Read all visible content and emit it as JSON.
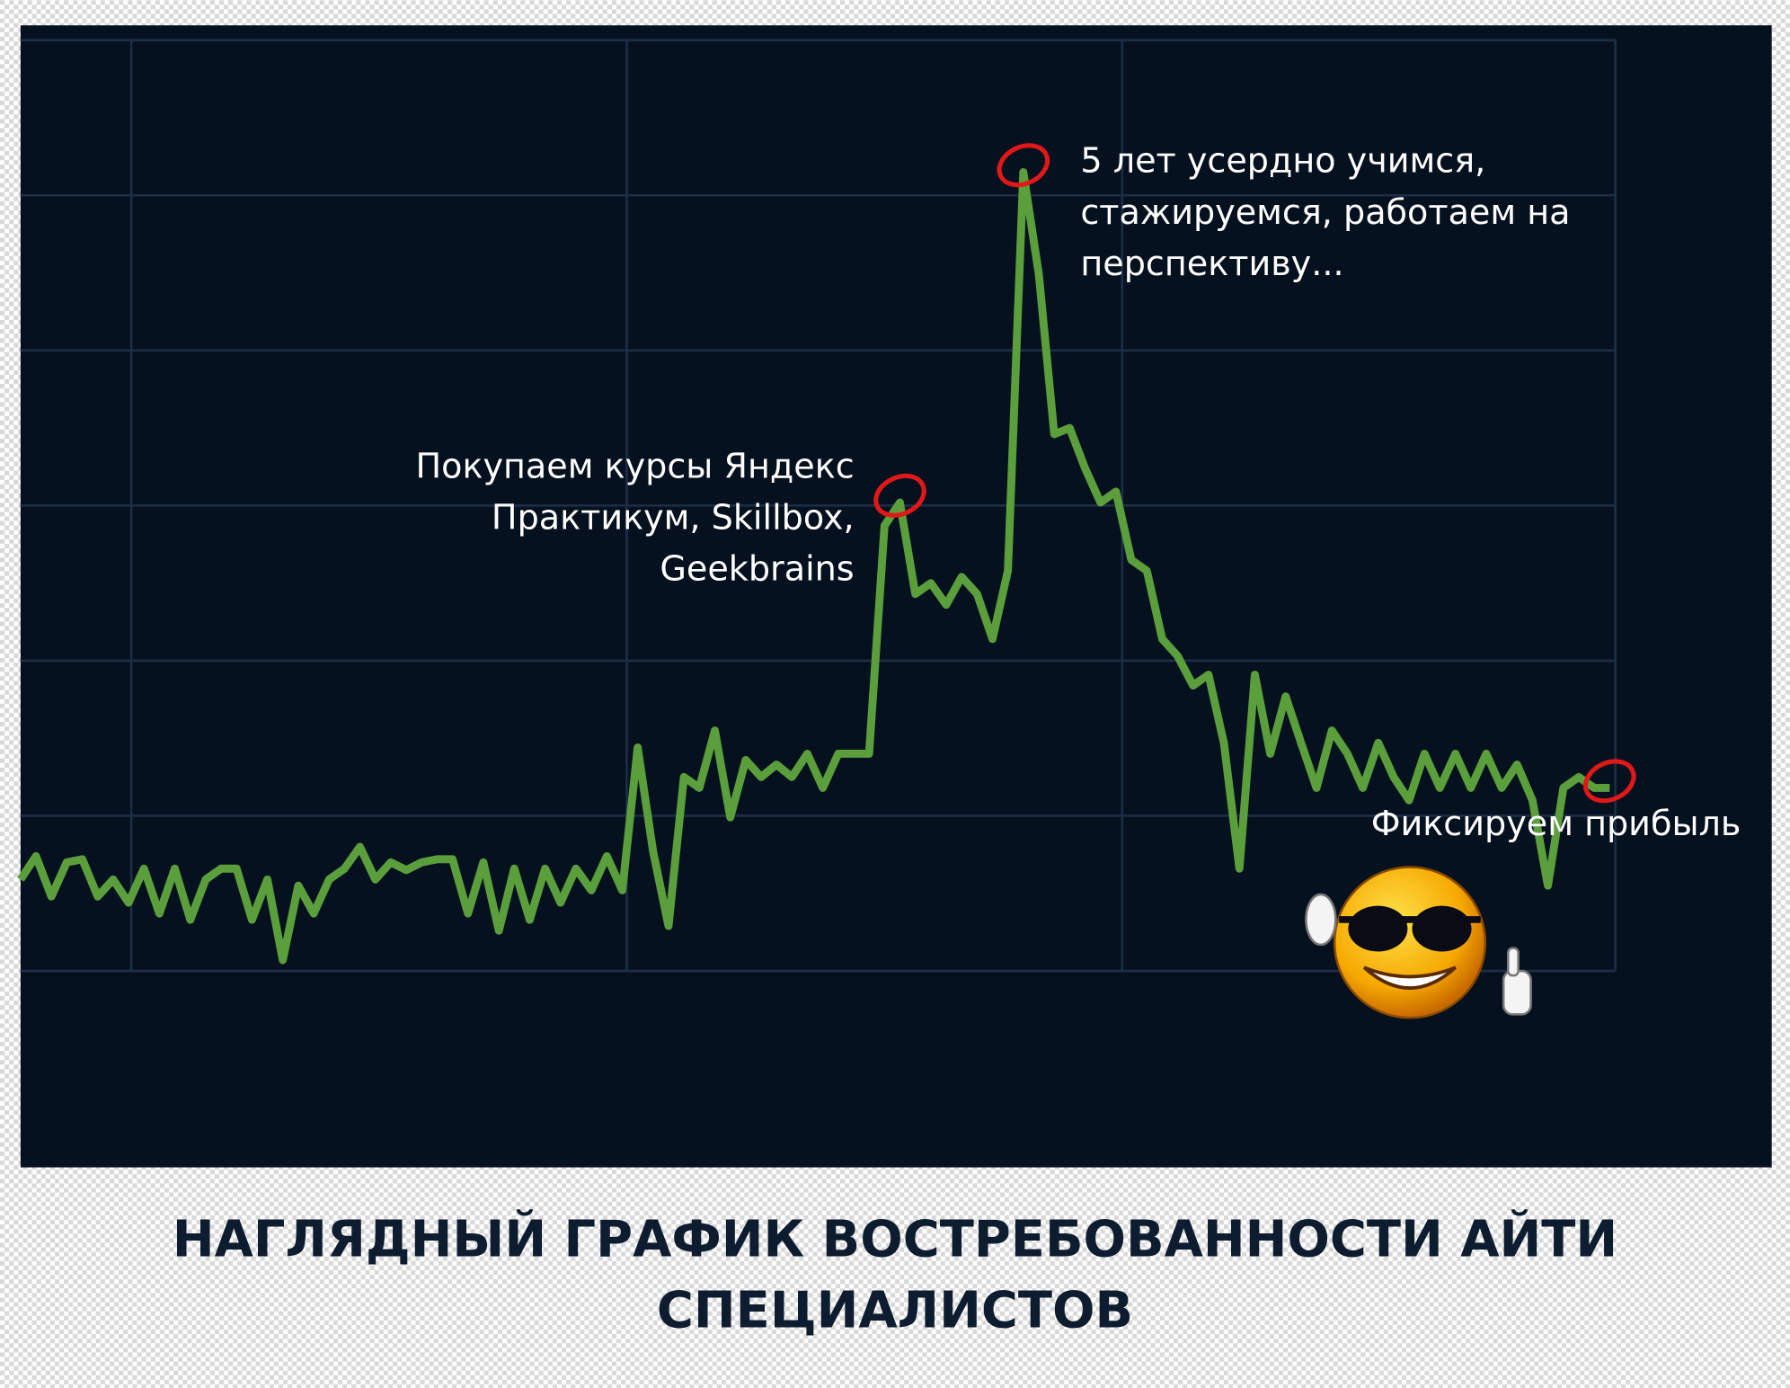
{
  "chart_data": {
    "type": "line",
    "title": [
      "НАГЛЯДНЫЙ ГРАФИК ВОСТРЕБОВАННОСТИ АЙТИ",
      "СПЕЦИАЛИСТОВ"
    ],
    "annotations": [
      [
        "Покупаем курсы Яндекс",
        "Практикум, Skillbox,",
        "Geekbrains"
      ],
      [
        "5 лет усердно учимся,",
        "стажируемся, работаем на",
        "перспективу..."
      ],
      [
        "Фиксируем прибыль"
      ]
    ],
    "values": [
      0.59,
      0.74,
      0.48,
      0.7,
      0.72,
      0.48,
      0.59,
      0.44,
      0.66,
      0.37,
      0.66,
      0.33,
      0.59,
      0.66,
      0.66,
      0.33,
      0.59,
      0.07,
      0.55,
      0.37,
      0.59,
      0.66,
      0.8,
      0.59,
      0.7,
      0.65,
      0.7,
      0.72,
      0.72,
      0.37,
      0.7,
      0.26,
      0.66,
      0.33,
      0.66,
      0.44,
      0.66,
      0.52,
      0.74,
      0.52,
      1.44,
      0.77,
      0.29,
      1.25,
      1.18,
      1.55,
      0.99,
      1.36,
      1.25,
      1.33,
      1.25,
      1.4,
      1.18,
      1.4,
      1.4,
      1.4,
      2.87,
      3.02,
      2.43,
      2.5,
      2.36,
      2.54,
      2.43,
      2.14,
      2.58,
      5.15,
      4.49,
      3.46,
      3.5,
      3.24,
      3.02,
      3.09,
      2.65,
      2.58,
      2.14,
      2.03,
      1.84,
      1.91,
      1.47,
      0.66,
      1.91,
      1.4,
      1.77,
      1.47,
      1.18,
      1.55,
      1.4,
      1.18,
      1.47,
      1.25,
      1.1,
      1.4,
      1.18,
      1.4,
      1.18,
      1.4,
      1.18,
      1.33,
      1.1,
      0.55,
      1.18,
      1.25,
      1.18,
      1.18
    ],
    "color": "#5b9e3c",
    "ylim": [
      0,
      6
    ],
    "yticks": [
      0,
      1,
      2,
      3,
      4,
      5,
      6
    ],
    "grid": true
  }
}
